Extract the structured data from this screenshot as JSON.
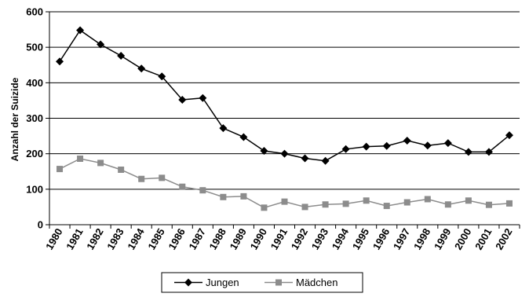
{
  "chart_data": {
    "type": "line",
    "title": "",
    "xlabel": "",
    "ylabel": "Anzahl der Suizide",
    "ylim": [
      0,
      600
    ],
    "yticks": [
      "0",
      "100",
      "200",
      "300",
      "400",
      "500",
      "600"
    ],
    "grid": true,
    "legend_position": "bottom",
    "categories": [
      "1980",
      "1981",
      "1982",
      "1983",
      "1984",
      "1985",
      "1986",
      "1987",
      "1988",
      "1989",
      "1990",
      "1991",
      "1992",
      "1993",
      "1994",
      "1995",
      "1996",
      "1997",
      "1998",
      "1999",
      "2000",
      "2001",
      "2002"
    ],
    "series": [
      {
        "name": "Jungen",
        "color": "#000000",
        "marker": "diamond",
        "values": [
          460,
          548,
          508,
          476,
          440,
          418,
          352,
          357,
          272,
          247,
          208,
          200,
          187,
          180,
          213,
          220,
          222,
          237,
          223,
          230,
          205,
          205,
          252
        ]
      },
      {
        "name": "Mädchen",
        "color": "#8c8c8c",
        "marker": "square",
        "values": [
          157,
          186,
          174,
          155,
          129,
          132,
          107,
          97,
          78,
          80,
          48,
          65,
          50,
          57,
          59,
          68,
          53,
          63,
          72,
          57,
          68,
          56,
          60
        ]
      }
    ]
  }
}
